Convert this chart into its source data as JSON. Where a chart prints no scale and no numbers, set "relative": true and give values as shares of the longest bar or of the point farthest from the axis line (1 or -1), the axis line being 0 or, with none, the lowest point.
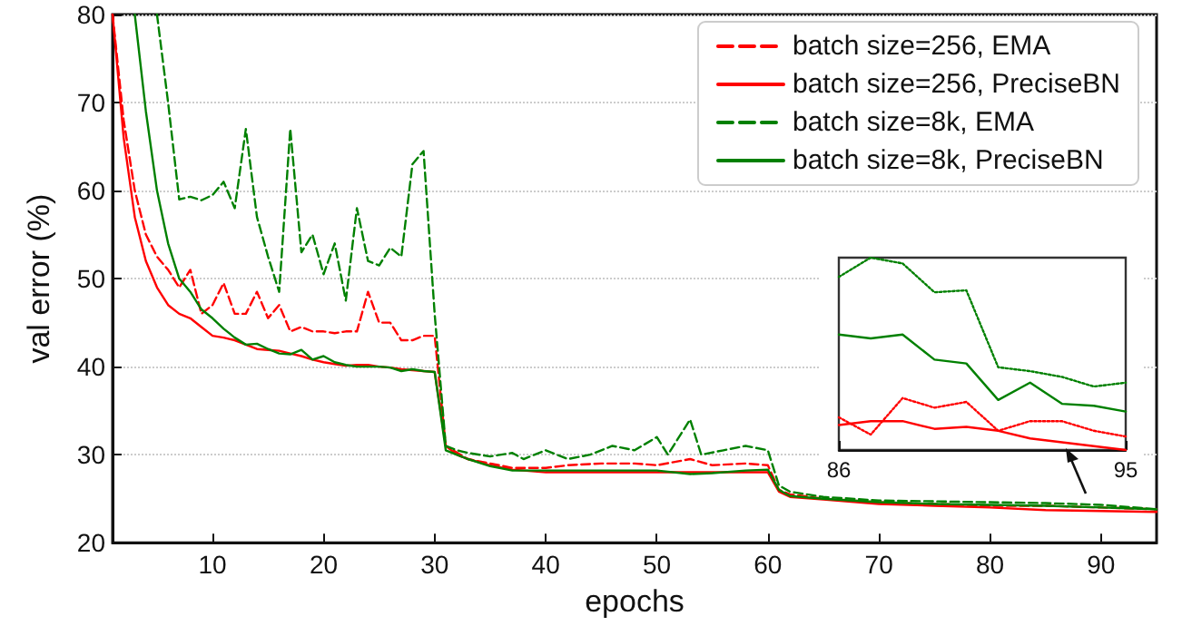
{
  "chart_data": [
    {
      "type": "line",
      "xlabel": "epochs",
      "ylabel": "val error (%)",
      "xlim": [
        1,
        95
      ],
      "ylim": [
        20,
        80
      ],
      "xticks": [
        10,
        20,
        30,
        40,
        50,
        60,
        70,
        80,
        90
      ],
      "yticks": [
        20,
        30,
        40,
        50,
        60,
        70,
        80
      ],
      "grid": "y",
      "legend": "top right",
      "marker": "none",
      "series": [
        {
          "name": "batch size=256, EMA",
          "color": "#ff0000",
          "line_style": "dashed",
          "x": [
            1,
            2,
            3,
            4,
            5,
            6,
            7,
            8,
            9,
            10,
            11,
            12,
            13,
            14,
            15,
            16,
            17,
            18,
            19,
            20,
            21,
            22,
            23,
            24,
            25,
            26,
            27,
            28,
            29,
            30,
            31,
            33,
            35,
            37,
            40,
            42,
            45,
            48,
            50,
            53,
            55,
            58,
            60,
            61,
            62,
            65,
            70,
            75,
            80,
            85,
            90,
            95
          ],
          "values": [
            80,
            68,
            60,
            55,
            52.5,
            51,
            49,
            51,
            46,
            47,
            49.5,
            46,
            46,
            48.5,
            45.5,
            47,
            44,
            44.5,
            44,
            44,
            43.8,
            44,
            44,
            48.5,
            45,
            45,
            43,
            43,
            43.5,
            43.5,
            31,
            29.5,
            29,
            28.5,
            28.5,
            28.8,
            29,
            29,
            28.8,
            29.5,
            28.8,
            29,
            28.8,
            26,
            25.5,
            25,
            24.6,
            24.4,
            24.2,
            24.2,
            24,
            23.8
          ]
        },
        {
          "name": "batch size=256, PreciseBN",
          "color": "#ff0000",
          "line_style": "solid",
          "x": [
            1,
            2,
            3,
            4,
            5,
            6,
            7,
            8,
            9,
            10,
            11,
            12,
            13,
            14,
            15,
            16,
            17,
            18,
            19,
            20,
            21,
            22,
            23,
            24,
            25,
            26,
            27,
            28,
            29,
            30,
            31,
            32,
            33,
            35,
            37,
            40,
            45,
            50,
            55,
            60,
            61,
            62,
            65,
            70,
            75,
            80,
            85,
            90,
            95
          ],
          "values": [
            80,
            66,
            57,
            52,
            49,
            47,
            46,
            45.5,
            44.5,
            43.5,
            43.3,
            43,
            42.5,
            42,
            41.9,
            41.8,
            41.5,
            41.2,
            40.8,
            40.5,
            40.3,
            40.1,
            40.2,
            40.2,
            40,
            39.9,
            39.7,
            39.6,
            39.5,
            39.4,
            31,
            30,
            29.5,
            28.8,
            28.3,
            28,
            28,
            28,
            28,
            28,
            25.8,
            25.2,
            24.9,
            24.4,
            24.2,
            24,
            23.7,
            23.6,
            23.5
          ]
        },
        {
          "name": "batch size=8k, EMA",
          "color": "#008000",
          "line_style": "dashed",
          "x": [
            5,
            6,
            7,
            8,
            9,
            10,
            11,
            12,
            13,
            14,
            15,
            16,
            17,
            18,
            19,
            20,
            21,
            22,
            23,
            24,
            25,
            26,
            27,
            28,
            29,
            30,
            31,
            32,
            33,
            35,
            37,
            38,
            40,
            42,
            44,
            46,
            48,
            50,
            51,
            53,
            54,
            56,
            58,
            60,
            61,
            62,
            65,
            70,
            75,
            80,
            85,
            90,
            95
          ],
          "values": [
            80,
            70,
            59,
            59.3,
            58.9,
            59.5,
            61,
            58,
            67,
            57,
            52.5,
            48.5,
            67,
            53,
            55,
            50.5,
            54,
            47.5,
            58,
            52,
            51.5,
            53.5,
            52.5,
            63,
            64.5,
            46,
            31,
            30.5,
            30.2,
            29.8,
            30.2,
            29.5,
            30.5,
            29.5,
            30,
            31,
            30.5,
            32,
            30,
            34,
            30,
            30.5,
            31,
            30.5,
            26.5,
            25.8,
            25.2,
            24.8,
            24.7,
            24.6,
            24.5,
            24.3,
            23.8
          ]
        },
        {
          "name": "batch size=8k, PreciseBN",
          "color": "#008000",
          "line_style": "solid",
          "x": [
            3,
            4,
            5,
            6,
            7,
            8,
            9,
            10,
            11,
            12,
            13,
            14,
            15,
            16,
            17,
            18,
            19,
            20,
            21,
            22,
            23,
            24,
            25,
            26,
            27,
            28,
            29,
            30,
            31,
            33,
            35,
            37,
            40,
            45,
            50,
            53,
            55,
            58,
            60,
            61,
            62,
            65,
            70,
            75,
            80,
            85,
            90,
            95
          ],
          "values": [
            80,
            69,
            60,
            54,
            50,
            48.5,
            46.5,
            45.5,
            44.3,
            43.3,
            42.5,
            42.6,
            42,
            41.5,
            41.4,
            41.9,
            40.8,
            41.2,
            40.5,
            40.2,
            40,
            40,
            40,
            39.9,
            39.5,
            39.7,
            39.5,
            39.4,
            30.5,
            29.5,
            28.7,
            28.2,
            28.2,
            28.2,
            28.2,
            27.8,
            27.9,
            28.2,
            28.3,
            26,
            25.3,
            25,
            24.6,
            24.4,
            24.3,
            24.2,
            24,
            23.8
          ]
        }
      ]
    },
    {
      "type": "line",
      "relative": true,
      "xlim": [
        86,
        95
      ],
      "xticks": [
        86,
        95
      ],
      "tick_labels": "x",
      "marker": "none",
      "series": [
        {
          "color": "#008000",
          "line_style": "dotted",
          "x": [
            86,
            87,
            88,
            89,
            90,
            91,
            92,
            93,
            94,
            95
          ],
          "values": [
            0.9,
            1,
            0.97,
            0.82,
            0.83,
            0.43,
            0.41,
            0.38,
            0.33,
            0.35
          ]
        },
        {
          "color": "#008000",
          "line_style": "solid",
          "x": [
            86,
            87,
            88,
            89,
            90,
            91,
            92,
            93,
            94,
            95
          ],
          "values": [
            0.6,
            0.58,
            0.6,
            0.47,
            0.45,
            0.26,
            0.35,
            0.24,
            0.23,
            0.2
          ]
        },
        {
          "color": "#ff0000",
          "line_style": "dotted",
          "x": [
            86,
            87,
            88,
            89,
            90,
            91,
            92,
            93,
            94,
            95
          ],
          "values": [
            0.17,
            0.08,
            0.27,
            0.22,
            0.25,
            0.1,
            0.15,
            0.15,
            0.1,
            0.07
          ]
        },
        {
          "color": "#ff0000",
          "line_style": "solid",
          "x": [
            86,
            87,
            88,
            89,
            90,
            91,
            92,
            93,
            94,
            95
          ],
          "values": [
            0.13,
            0.15,
            0.15,
            0.11,
            0.12,
            0.1,
            0.06,
            0.04,
            0.02,
            0
          ]
        }
      ]
    }
  ]
}
